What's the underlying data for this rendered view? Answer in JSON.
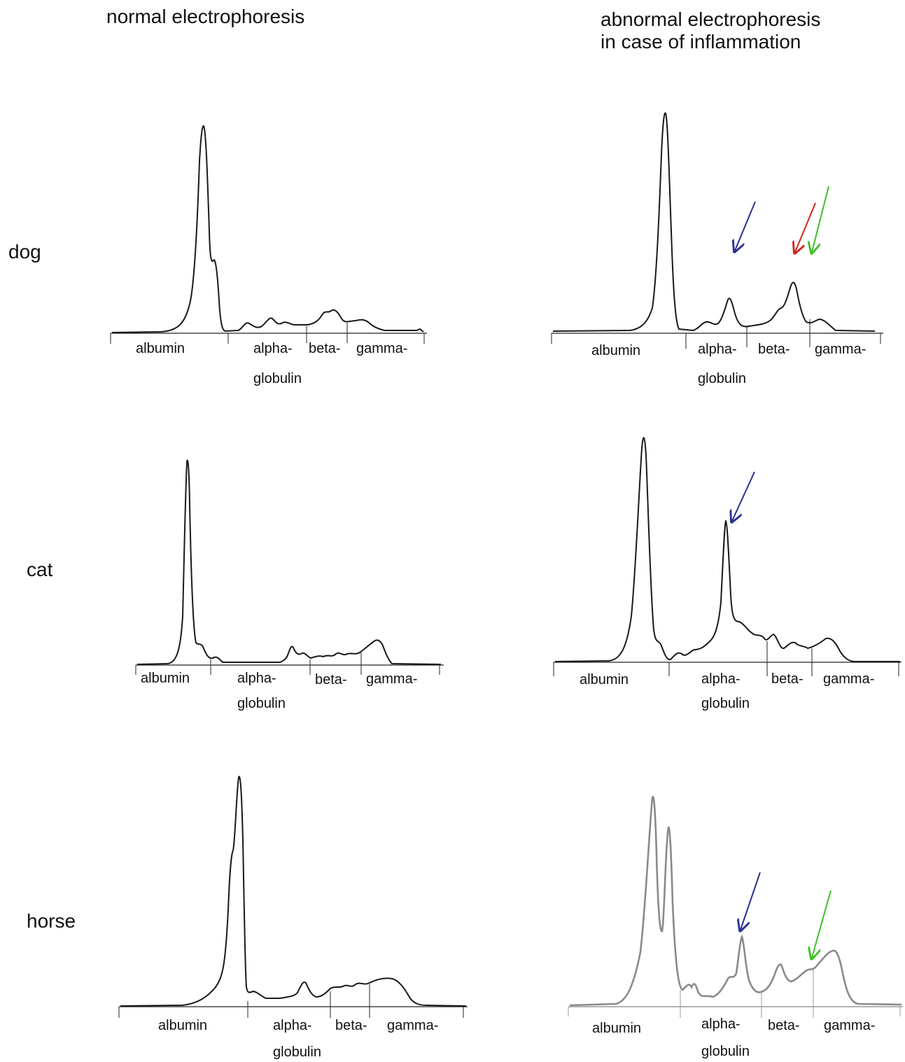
{
  "titles": {
    "left": "normal electrophoresis",
    "right_line1": "abnormal electrophoresis",
    "right_line2": "in case of inflammation"
  },
  "rows": {
    "dog": "dog",
    "cat": "cat",
    "horse": "horse"
  },
  "fraction_labels": {
    "albumin": "albumin",
    "alpha": "alpha-",
    "globulin": "globulin",
    "beta": "beta-",
    "gamma": "gamma-"
  },
  "colors": {
    "trace": "#1a1a1a",
    "trace_faded": "#8a8a8a",
    "arrow_blue": "#2b2f8f",
    "arrow_red": "#d2261c",
    "arrow_green": "#3fbf2a"
  },
  "chart_data": [
    {
      "type": "line",
      "panel": "dog-normal",
      "series": [
        {
          "values": [
            0,
            0.01,
            0.03,
            0.1,
            0.4,
            0.98,
            0.72,
            0.02,
            0.06,
            0.04,
            0.07,
            0.04,
            0.04,
            0.08,
            0.1,
            0.05,
            0.07,
            0.02,
            0
          ]
        }
      ]
    },
    {
      "type": "line",
      "panel": "dog-abnormal",
      "series": [
        {
          "values": [
            0,
            0.01,
            0.04,
            1.0,
            0.02,
            0.06,
            0.17,
            0.02,
            0.05,
            0.22,
            0.04,
            0
          ]
        }
      ],
      "arrows": [
        "blue",
        "red",
        "green"
      ]
    },
    {
      "type": "line",
      "panel": "cat-normal",
      "series": [
        {
          "values": [
            0,
            0.02,
            1.0,
            0.1,
            0.04,
            0.01,
            0.1,
            0.05,
            0.06,
            0.07,
            0.12,
            0.0
          ]
        }
      ]
    },
    {
      "type": "line",
      "panel": "cat-abnormal",
      "series": [
        {
          "values": [
            0,
            0.05,
            1.0,
            0.11,
            0.04,
            0.08,
            0.65,
            0.19,
            0.14,
            0.12,
            0.07,
            0.13,
            0
          ]
        }
      ],
      "arrows": [
        "blue"
      ]
    },
    {
      "type": "line",
      "panel": "horse-normal",
      "series": [
        {
          "values": [
            0,
            0.01,
            0.14,
            0.98,
            0.06,
            0.02,
            0.12,
            0.06,
            0.08,
            0.13,
            0.15,
            0
          ]
        }
      ]
    },
    {
      "type": "line",
      "panel": "horse-abnormal",
      "series": [
        {
          "values": [
            0,
            1.0,
            0.42,
            0.88,
            0.05,
            0.07,
            0.24,
            0.36,
            0.11,
            0.19,
            0.2,
            0.29,
            0
          ]
        }
      ],
      "arrows": [
        "blue",
        "green"
      ]
    }
  ]
}
